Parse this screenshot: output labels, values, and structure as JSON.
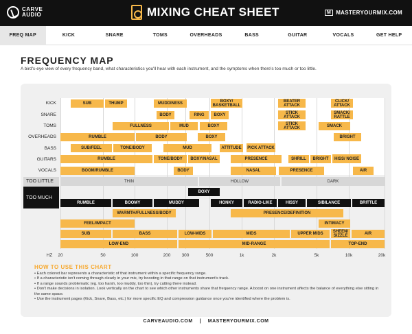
{
  "header": {
    "logo_line1": "CARVE",
    "logo_line2": "AUDIO",
    "title": "MIXING CHEAT SHEET",
    "brand_right": "MASTERYOURMIX.COM",
    "brand_mark": "M"
  },
  "nav": [
    {
      "label": "FREQ MAP",
      "active": true
    },
    {
      "label": "KICK"
    },
    {
      "label": "SNARE"
    },
    {
      "label": "TOMS"
    },
    {
      "label": "OVERHEADS"
    },
    {
      "label": "BASS"
    },
    {
      "label": "GUITAR"
    },
    {
      "label": "VOCALS"
    },
    {
      "label": "GET HELP"
    }
  ],
  "page": {
    "title": "FREQUENCY MAP",
    "subtitle": "A bird's-eye view of every frequency band, what characteristics you'll hear with each instrument, and the symptoms when there's too much or too little."
  },
  "rows": [
    "KICK",
    "SNARE",
    "TOMS",
    "OVERHEADS",
    "BASS",
    "GUITARS",
    "VOCALS"
  ],
  "side_labels": {
    "too_little": "TOO LITTLE",
    "too_much": "TOO MUCH"
  },
  "bars": {
    "kick": [
      "SUB",
      "THUMP",
      "MUDDINESS",
      "BOXY/ BASKETBALL",
      "BEATER ATTACK",
      "CLICK/ ATTACK"
    ],
    "snare": [
      "BODY",
      "RING",
      "BOXY",
      "STICK ATTACK",
      "SMACK/ RATTLE"
    ],
    "toms": [
      "FULLNESS",
      "MUD",
      "BOXY",
      "STICK ATTACK",
      "SMACK"
    ],
    "overheads": [
      "RUMBLE",
      "BODY",
      "BOXY",
      "BRIGHT"
    ],
    "bass": [
      "SUB/FEEL",
      "TONE/BODY",
      "MUD",
      "ATTITUDE",
      "PICK ATTACK"
    ],
    "guitars": [
      "RUMBLE",
      "TONE/BODY",
      "BOXY/NASAL",
      "PRESENCE",
      "SHRILL",
      "BRIGHT",
      "HISS/ NOISE"
    ],
    "vocals": [
      "BOOM/RUMBLE",
      "BODY",
      "NASAL",
      "PRESENCE",
      "AIR"
    ],
    "too_little": [
      "THIN",
      "HOLLOW",
      "DARK"
    ],
    "too_much_top": "BOXY",
    "too_much": [
      "RUMBLE",
      "BOOMY",
      "MUDDY",
      "HONKY",
      "RADIO-LIKE",
      "HISSY",
      "SIBILANCE",
      "BRITTLE"
    ],
    "summary_1": [
      "WARMTH/FULLNESS/BODY",
      "PRESENCE/DEFINITION"
    ],
    "summary_2": [
      "FEEL/IMPACT",
      "INTIMACY"
    ],
    "summary_3": [
      "SUB",
      "BASS",
      "LOW-MIDS",
      "MIDS",
      "UPPER MIDS",
      "SHEEN/ SIZZLE",
      "AIR"
    ],
    "summary_4": [
      "LOW-END",
      "MID-RANGE",
      "TOP-END"
    ]
  },
  "axis": {
    "unit": "HZ",
    "ticks": [
      "20",
      "50",
      "100",
      "200",
      "300",
      "500",
      "1k",
      "2k",
      "5k",
      "10k",
      "20k"
    ]
  },
  "how": {
    "title": "HOW TO USE THIS CHART",
    "items": [
      "Each colored bar represents a characteristic of that instrument within a specific frequency range.",
      "If a characteristic isn't coming through clearly in your mix, try boosting in that range on that instrument's track.",
      "If a range sounds problematic (eg. too harsh, too muddy, too thin), try cutting there instead.",
      "Don't make decisions in isolation. Look vertically on the chart to see which other instruments share that frequency range. A boost on one instrument affects the balance of everything else sitting in the same space.",
      "Use the instrument pages (Kick, Snare, Bass, etc.) for more specific EQ and compression guidance once you've identified where the problem is."
    ]
  },
  "footer": {
    "left": "CARVEAUDIO.COM",
    "sep": "|",
    "right": "MASTERYOURMIX.COM"
  },
  "colors": {
    "accent": "#f7b84a",
    "dark": "#111111",
    "light_gray": "#d7d7d7"
  }
}
